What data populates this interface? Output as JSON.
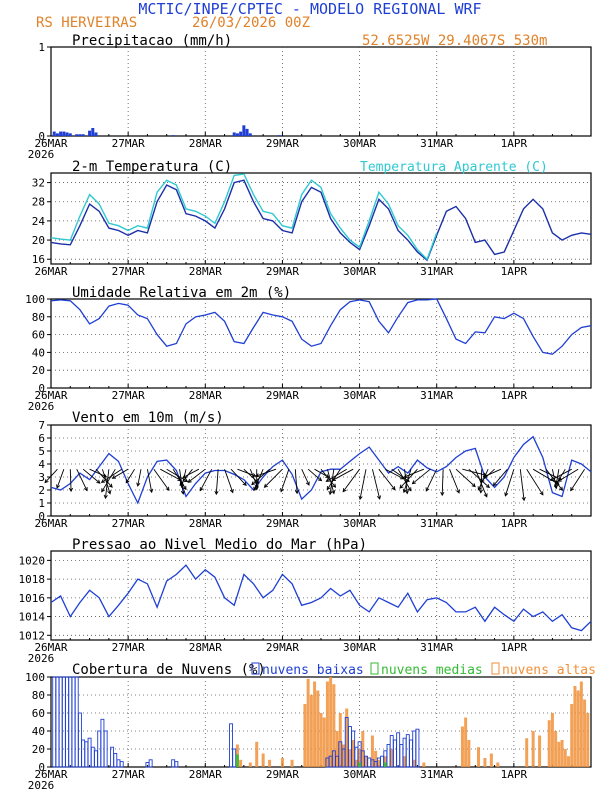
{
  "header": {
    "title": "MCTIC/INPE/CPTEC - MODELO REGIONAL WRF",
    "location": "RS HERVEIRAS",
    "run": "26/03/2026 00Z",
    "coords": "52.6525W 29.4067S 530m"
  },
  "colors": {
    "blue": "#1f3fd4",
    "navy": "#1a2fa8",
    "cyan": "#2fc9d1",
    "orange": "#f0913a",
    "green": "#33bb33",
    "title_blue": "#1f3fd4",
    "header_orange": "#e0822a",
    "grid": "#555555"
  },
  "x_axis": {
    "labels": [
      "26MAR",
      "27MAR",
      "28MAR",
      "29MAR",
      "30MAR",
      "31MAR",
      "1APR"
    ],
    "year": "2026",
    "hours_total": 168
  },
  "chart_data": [
    {
      "id": "precip",
      "type": "bar",
      "title": "Precipitacao (mm/h)",
      "ylim": [
        0,
        1
      ],
      "yticks": [
        "0",
        "1"
      ],
      "x_hours": [
        1,
        2,
        3,
        4,
        5,
        6,
        8,
        9,
        10,
        12,
        13,
        14,
        38,
        57,
        58,
        59,
        60,
        61,
        62,
        71
      ],
      "values": [
        0.05,
        0.03,
        0.05,
        0.05,
        0.04,
        0.03,
        0.02,
        0.02,
        0.02,
        0.06,
        0.09,
        0.04,
        0.01,
        0.04,
        0.03,
        0.05,
        0.12,
        0.08,
        0.03,
        0.01
      ]
    },
    {
      "id": "temp",
      "type": "line",
      "title": "2-m Temperatura (C)",
      "legend": "Temperatura Aparente (C)",
      "ylim": [
        15,
        34
      ],
      "yticks": [
        "16",
        "20",
        "24",
        "28",
        "32"
      ],
      "series": [
        {
          "name": "Temperatura",
          "x": [
            0,
            3,
            6,
            9,
            12,
            15,
            18,
            21,
            24,
            27,
            30,
            33,
            36,
            39,
            42,
            45,
            48,
            51,
            54,
            57,
            60,
            63,
            66,
            69,
            72,
            75,
            78,
            81,
            84,
            87,
            90,
            93,
            96,
            99,
            102,
            105,
            108,
            111,
            114,
            117,
            120,
            123,
            126,
            129,
            132,
            135,
            138,
            141,
            144,
            147,
            150,
            153,
            156,
            159,
            162,
            165,
            168
          ],
          "values": [
            19.5,
            19.2,
            19.0,
            23.0,
            27.5,
            26.0,
            22.5,
            22.0,
            21.0,
            22.0,
            21.5,
            28.0,
            31.5,
            30.5,
            25.5,
            25.0,
            24.0,
            22.5,
            26.5,
            32.0,
            32.5,
            28.0,
            24.5,
            24.0,
            22.0,
            21.5,
            28.0,
            31.0,
            30.0,
            24.5,
            21.5,
            19.5,
            18.0,
            23.0,
            28.5,
            26.5,
            22.0,
            20.0,
            17.5,
            15.8,
            21.0,
            26.0,
            27.0,
            24.5,
            19.5,
            20.0,
            17.0,
            17.5,
            22.0,
            26.5,
            28.5,
            26.5,
            21.5,
            20.0,
            21.0,
            21.5,
            21.2
          ]
        },
        {
          "name": "Temperatura Aparente",
          "x": [
            0,
            3,
            6,
            9,
            12,
            15,
            18,
            21,
            24,
            27,
            30,
            33,
            36,
            39,
            42,
            45,
            48,
            51,
            54,
            57,
            60,
            63,
            66,
            69,
            72,
            75,
            78,
            81,
            84,
            87,
            90,
            93,
            96,
            99,
            102,
            105,
            108,
            111,
            114,
            117,
            120
          ],
          "values": [
            20.5,
            20.2,
            20.0,
            25.0,
            29.5,
            27.5,
            23.5,
            23.0,
            22.0,
            23.0,
            22.5,
            30.0,
            32.5,
            31.5,
            26.5,
            26.0,
            25.0,
            23.5,
            28.0,
            33.5,
            33.8,
            29.5,
            26.0,
            25.5,
            23.0,
            22.5,
            29.5,
            32.5,
            31.0,
            25.5,
            22.5,
            20.0,
            18.5,
            24.0,
            30.0,
            27.5,
            23.0,
            21.0,
            18.0,
            16.0,
            21.5
          ]
        }
      ]
    },
    {
      "id": "rh",
      "type": "line",
      "title": "Umidade Relativa em 2m (%)",
      "ylim": [
        0,
        100
      ],
      "yticks": [
        "0",
        "20",
        "40",
        "60",
        "80",
        "100"
      ],
      "x": [
        0,
        3,
        6,
        9,
        12,
        15,
        18,
        21,
        24,
        27,
        30,
        33,
        36,
        39,
        42,
        45,
        48,
        51,
        54,
        57,
        60,
        63,
        66,
        69,
        72,
        75,
        78,
        81,
        84,
        87,
        90,
        93,
        96,
        99,
        102,
        105,
        108,
        111,
        114,
        117,
        120,
        123,
        126,
        129,
        132,
        135,
        138,
        141,
        144,
        147,
        150,
        153,
        156,
        159,
        162,
        165,
        168
      ],
      "values": [
        98,
        99,
        98,
        88,
        72,
        78,
        92,
        95,
        93,
        82,
        78,
        60,
        47,
        50,
        72,
        80,
        82,
        85,
        75,
        52,
        50,
        68,
        85,
        82,
        80,
        75,
        55,
        47,
        50,
        70,
        88,
        97,
        99,
        97,
        75,
        62,
        80,
        96,
        99,
        99,
        100,
        78,
        55,
        50,
        63,
        62,
        80,
        78,
        84,
        78,
        58,
        40,
        38,
        47,
        60,
        68,
        70
      ]
    },
    {
      "id": "wind",
      "type": "line",
      "title": "Vento em 10m (m/s)",
      "ylim": [
        0,
        7
      ],
      "yticks": [
        "0",
        "1",
        "2",
        "3",
        "4",
        "5",
        "6",
        "7"
      ],
      "x": [
        0,
        3,
        6,
        9,
        12,
        15,
        18,
        21,
        24,
        27,
        30,
        33,
        36,
        39,
        42,
        45,
        48,
        51,
        54,
        57,
        60,
        63,
        66,
        69,
        72,
        75,
        78,
        81,
        84,
        87,
        90,
        93,
        96,
        99,
        102,
        105,
        108,
        111,
        114,
        117,
        120,
        123,
        126,
        129,
        132,
        135,
        138,
        141,
        144,
        147,
        150,
        153,
        156,
        159,
        162,
        165,
        168
      ],
      "values": [
        2.2,
        2.0,
        2.5,
        3.3,
        2.8,
        3.8,
        4.8,
        4.2,
        2.5,
        1.0,
        3.0,
        4.2,
        4.3,
        3.5,
        1.5,
        2.5,
        3.3,
        3.5,
        3.5,
        3.2,
        2.8,
        2.0,
        3.0,
        3.8,
        4.3,
        3.2,
        1.3,
        2.0,
        3.4,
        3.6,
        3.6,
        4.2,
        4.8,
        5.3,
        4.3,
        3.3,
        3.8,
        3.3,
        4.3,
        3.7,
        3.4,
        3.8,
        4.5,
        5.0,
        5.2,
        3.0,
        2.2,
        3.0,
        4.5,
        5.5,
        6.1,
        4.5,
        1.8,
        1.5,
        4.3,
        4.0,
        3.4
      ]
    },
    {
      "id": "pressure",
      "type": "line",
      "title": "Pressao ao Nivel Medio do Mar (hPa)",
      "ylim": [
        1011.5,
        1021
      ],
      "yticks": [
        "1012",
        "1014",
        "1016",
        "1018",
        "1020"
      ],
      "x": [
        0,
        3,
        6,
        9,
        12,
        15,
        18,
        21,
        24,
        27,
        30,
        33,
        36,
        39,
        42,
        45,
        48,
        51,
        54,
        57,
        60,
        63,
        66,
        69,
        72,
        75,
        78,
        81,
        84,
        87,
        90,
        93,
        96,
        99,
        102,
        105,
        108,
        111,
        114,
        117,
        120,
        123,
        126,
        129,
        132,
        135,
        138,
        141,
        144,
        147,
        150,
        153,
        156,
        159,
        162,
        165,
        168
      ],
      "values": [
        1015.5,
        1016.2,
        1014.0,
        1015.5,
        1016.8,
        1016.0,
        1014.0,
        1015.2,
        1016.5,
        1018.0,
        1017.5,
        1015.0,
        1017.8,
        1018.5,
        1019.5,
        1018.0,
        1019.0,
        1018.2,
        1016.0,
        1015.2,
        1018.5,
        1017.5,
        1016.0,
        1016.8,
        1018.5,
        1017.5,
        1015.2,
        1015.5,
        1016.0,
        1017.0,
        1016.2,
        1016.8,
        1015.2,
        1014.5,
        1016.0,
        1015.5,
        1015.0,
        1016.5,
        1014.5,
        1015.8,
        1016.0,
        1015.5,
        1014.5,
        1014.5,
        1015.0,
        1013.5,
        1015.0,
        1014.2,
        1013.5,
        1014.8,
        1014.0,
        1014.5,
        1013.5,
        1014.2,
        1012.8,
        1012.5,
        1013.5
      ]
    },
    {
      "id": "clouds",
      "type": "bar",
      "title": "Cobertura de Nuvens (%)",
      "legend": [
        "nuvens baixas",
        "nuvens medias",
        "nuvens altas"
      ],
      "ylim": [
        0,
        100
      ],
      "yticks": [
        "0",
        "20",
        "40",
        "60",
        "80",
        "100"
      ],
      "series": [
        {
          "name": "nuvens baixas",
          "x": [
            1,
            2,
            3,
            4,
            5,
            6,
            7,
            8,
            9,
            10,
            11,
            12,
            13,
            14,
            15,
            16,
            17,
            19,
            20,
            21,
            22,
            30,
            31,
            38,
            39,
            56,
            57,
            86,
            87,
            88,
            89,
            90,
            91,
            92,
            93,
            94,
            95,
            96,
            97,
            98,
            99,
            100,
            101,
            102,
            103,
            104,
            105,
            106,
            107,
            108,
            109,
            110,
            111,
            112,
            113,
            114
          ],
          "values": [
            100,
            100,
            100,
            100,
            100,
            100,
            100,
            100,
            60,
            30,
            28,
            32,
            22,
            18,
            40,
            53,
            40,
            22,
            15,
            8,
            6,
            5,
            8,
            8,
            6,
            48,
            20,
            10,
            12,
            18,
            12,
            28,
            20,
            55,
            45,
            40,
            22,
            28,
            18,
            12,
            10,
            8,
            6,
            10,
            12,
            18,
            25,
            35,
            30,
            38,
            25,
            32,
            36,
            30,
            40,
            42
          ]
        },
        {
          "name": "nuvens medias",
          "x": [
            58,
            96,
            104
          ],
          "values": [
            14,
            5,
            5
          ]
        },
        {
          "name": "nuvens altas",
          "x": [
            58,
            59,
            62,
            64,
            66,
            68,
            72,
            75,
            79,
            80,
            81,
            82,
            83,
            84,
            85,
            86,
            87,
            88,
            89,
            90,
            91,
            92,
            93,
            94,
            95,
            96,
            97,
            98,
            100,
            101,
            102,
            104,
            106,
            110,
            113,
            116,
            128,
            129,
            130,
            133,
            135,
            137,
            139,
            148,
            150,
            152,
            155,
            156,
            157,
            158,
            159,
            160,
            161,
            162,
            163,
            164,
            165,
            166,
            167
          ],
          "values": [
            25,
            8,
            5,
            28,
            15,
            8,
            10,
            8,
            70,
            98,
            80,
            95,
            85,
            60,
            55,
            95,
            100,
            92,
            40,
            60,
            25,
            65,
            20,
            30,
            8,
            20,
            40,
            12,
            35,
            18,
            8,
            12,
            20,
            12,
            8,
            5,
            45,
            55,
            30,
            22,
            10,
            15,
            5,
            32,
            40,
            35,
            52,
            60,
            40,
            28,
            30,
            20,
            12,
            70,
            90,
            85,
            95,
            75,
            60
          ]
        }
      ]
    }
  ]
}
